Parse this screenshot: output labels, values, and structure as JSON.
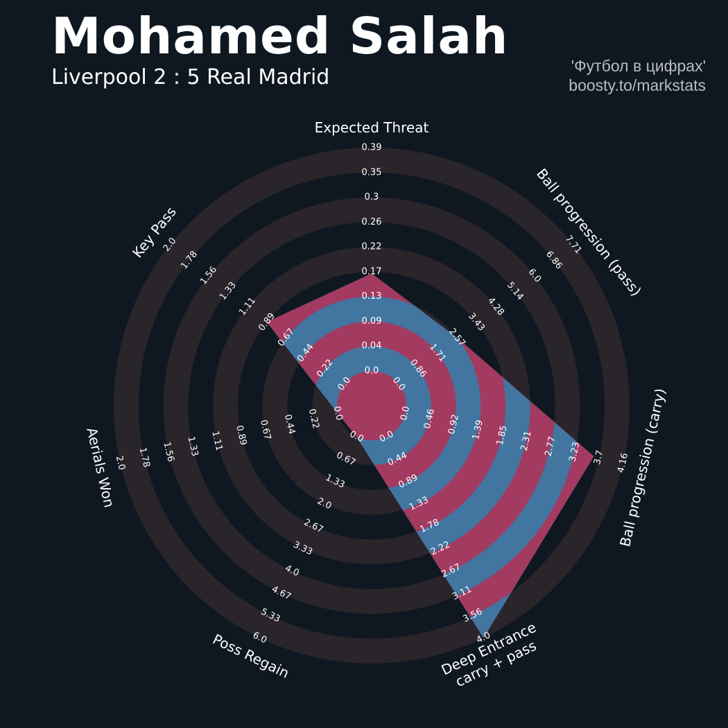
{
  "header": {
    "title": "Mohamed Salah",
    "subtitle": "Liverpool 2 : 5 Real Madrid",
    "credit_line1": "'Футбол в цифрах'",
    "credit_line2": "boosty.to/markstats"
  },
  "chart_data": {
    "type": "radar",
    "variant": "pizza-radar (concentric rings, one polygon)",
    "params": [
      {
        "label": [
          "Expected Threat"
        ],
        "min": 0.0,
        "max": 0.39,
        "value": 0.17,
        "ticks": [
          "0.0",
          "0.04",
          "0.09",
          "0.13",
          "0.17",
          "0.22",
          "0.26",
          "0.3",
          "0.35",
          "0.39"
        ]
      },
      {
        "label": [
          "Ball progression (pass)"
        ],
        "min": 0.0,
        "max": 7.71,
        "value": 2.57,
        "ticks": [
          "0.0",
          "0.86",
          "1.71",
          "2.57",
          "3.43",
          "4.28",
          "5.14",
          "6.0",
          "6.86",
          "7.71"
        ]
      },
      {
        "label": [
          "Ball progression (carry)"
        ],
        "min": 0.0,
        "max": 4.16,
        "value": 3.6,
        "ticks": [
          "0.0",
          "0.46",
          "0.92",
          "1.39",
          "1.85",
          "2.31",
          "2.77",
          "3.23",
          "3.7",
          "4.16"
        ]
      },
      {
        "label": [
          "Deep Entrance",
          "carry + pass"
        ],
        "min": 0.0,
        "max": 4.0,
        "value": 4.0,
        "ticks": [
          "0.0",
          "0.44",
          "0.89",
          "1.33",
          "1.78",
          "2.22",
          "2.67",
          "3.11",
          "3.56",
          "4.0"
        ]
      },
      {
        "label": [
          "Poss Regain"
        ],
        "min": 0.0,
        "max": 6.0,
        "value": 0.0,
        "ticks": [
          "0.0",
          "0.67",
          "1.33",
          "2.0",
          "2.67",
          "3.33",
          "4.0",
          "4.67",
          "5.33",
          "6.0"
        ]
      },
      {
        "label": [
          "Aerials Won"
        ],
        "min": 0.0,
        "max": 2.0,
        "value": 0.0,
        "ticks": [
          "0.0",
          "0.22",
          "0.44",
          "0.67",
          "0.89",
          "1.11",
          "1.33",
          "1.56",
          "1.78",
          "2.0"
        ]
      },
      {
        "label": [
          "Key Pass"
        ],
        "min": 0.0,
        "max": 2.0,
        "value": 0.89,
        "ticks": [
          "0.0",
          "0.22",
          "0.44",
          "0.67",
          "0.89",
          "1.11",
          "1.33",
          "1.56",
          "1.78",
          "2.0"
        ]
      }
    ],
    "colors": {
      "background": "#0f1820",
      "ring_filled": "#2a242b",
      "ring_empty": "#0f1820",
      "radar_ring_a": "#a33a60",
      "radar_ring_b": "#4275a0"
    }
  }
}
